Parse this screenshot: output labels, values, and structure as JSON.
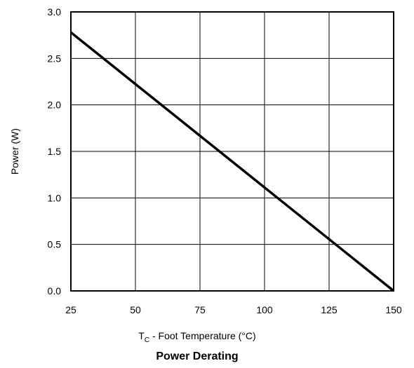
{
  "chart_data": {
    "type": "line",
    "title": "Power Derating",
    "xlabel_main": "T",
    "xlabel_sub": "C",
    "xlabel_rest": " - Foot Temperature (°C)",
    "ylabel": "Power (W)",
    "xlim": [
      25,
      150
    ],
    "ylim": [
      0,
      3.0
    ],
    "x_ticks": [
      25,
      50,
      75,
      100,
      125,
      150
    ],
    "x_tick_labels": [
      "25",
      "50",
      "75",
      "100",
      "125",
      "150"
    ],
    "y_ticks": [
      0,
      0.5,
      1.0,
      1.5,
      2.0,
      2.5,
      3.0
    ],
    "y_tick_labels": [
      "0.0",
      "0.5",
      "1.0",
      "1.5",
      "2.0",
      "2.5",
      "3.0"
    ],
    "grid": true,
    "series": [
      {
        "x": [
          25,
          150
        ],
        "y": [
          2.78,
          0.0
        ]
      }
    ],
    "colors": {
      "line": "#000000",
      "grid": "#000000",
      "frame": "#000000"
    }
  }
}
